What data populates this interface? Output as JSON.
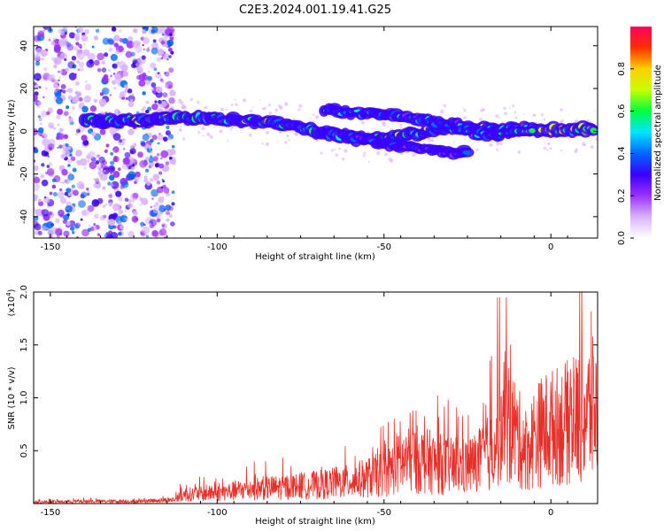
{
  "page": {
    "title": "C2E3.2024.001.19.41.G25"
  },
  "chart_data": [
    {
      "type": "heatmap",
      "title": "C2E3.2024.001.19.41.G25",
      "xlabel": "Height of straight line (km)",
      "ylabel": "Frequency (Hz)",
      "xlim": [
        -155,
        14
      ],
      "ylim": [
        -50,
        49
      ],
      "x_ticks": [
        -150,
        -100,
        -50,
        0
      ],
      "y_ticks": [
        40,
        20,
        0,
        -20,
        -40
      ],
      "colorbar": {
        "label": "Normalized spectral amplitude",
        "range": [
          0,
          1
        ],
        "ticks": [
          "0.0",
          "0.2",
          "0.4",
          "0.6",
          "0.8"
        ],
        "colors": [
          "#ffffff",
          "#d9b3ff",
          "#9b30ff",
          "#3a00ff",
          "#0066ff",
          "#00e5ff",
          "#00ff40",
          "#c8ff00",
          "#ffd000",
          "#ff3000",
          "#ff0060"
        ]
      },
      "ridges": [
        {
          "name": "main",
          "points": [
            [
              -140,
              5
            ],
            [
              -130,
              5
            ],
            [
              -115,
              6
            ],
            [
              -100,
              6
            ],
            [
              -90,
              5
            ],
            [
              -80,
              3
            ],
            [
              -70,
              0
            ],
            [
              -60,
              -3
            ],
            [
              -50,
              -4
            ],
            [
              -40,
              -1
            ],
            [
              -30,
              2
            ],
            [
              -20,
              1
            ],
            [
              -10,
              1
            ],
            [
              0,
              1
            ],
            [
              13,
              1
            ]
          ]
        },
        {
          "name": "upper",
          "points": [
            [
              -68,
              10
            ],
            [
              -60,
              9
            ],
            [
              -50,
              8
            ],
            [
              -42,
              6
            ],
            [
              -35,
              4
            ],
            [
              -28,
              3
            ],
            [
              -22,
              -1
            ],
            [
              -18,
              -2
            ],
            [
              -12,
              0
            ],
            [
              -5,
              1
            ]
          ]
        },
        {
          "name": "lower",
          "points": [
            [
              -62,
              -2
            ],
            [
              -50,
              -6
            ],
            [
              -40,
              -8
            ],
            [
              -30,
              -10
            ],
            [
              -25,
              -9
            ]
          ]
        }
      ]
    },
    {
      "type": "line",
      "xlabel": "Height of straight line (km)",
      "ylabel": "SNR (10 * v/v)",
      "y_multiplier": "(x10",
      "y_multiplier_exp": "4",
      "xlim": [
        -155,
        14
      ],
      "ylim": [
        0,
        2.0
      ],
      "x_ticks": [
        -150,
        -100,
        -50,
        0
      ],
      "y_ticks": [
        "0.5",
        "1.0",
        "1.5",
        "2.0"
      ],
      "series_color": "#e8302a",
      "envelope": [
        [
          -155,
          0.02
        ],
        [
          -140,
          0.03
        ],
        [
          -125,
          0.03
        ],
        [
          -113,
          0.05
        ],
        [
          -110,
          0.12
        ],
        [
          -100,
          0.14
        ],
        [
          -90,
          0.2
        ],
        [
          -80,
          0.22
        ],
        [
          -70,
          0.25
        ],
        [
          -60,
          0.3
        ],
        [
          -50,
          0.4
        ],
        [
          -45,
          0.55
        ],
        [
          -40,
          0.6
        ],
        [
          -35,
          0.55
        ],
        [
          -30,
          0.5
        ],
        [
          -25,
          0.5
        ],
        [
          -20,
          0.6
        ],
        [
          -17,
          0.8
        ],
        [
          -15,
          1.1
        ],
        [
          -13,
          1.2
        ],
        [
          -10,
          0.9
        ],
        [
          -7,
          0.7
        ],
        [
          -5,
          0.9
        ],
        [
          -2,
          1.0
        ],
        [
          2,
          1.05
        ],
        [
          6,
          1.1
        ],
        [
          10,
          1.2
        ],
        [
          14,
          1.3
        ]
      ]
    }
  ],
  "colors": {
    "axis": "#000000",
    "grid": "none"
  }
}
